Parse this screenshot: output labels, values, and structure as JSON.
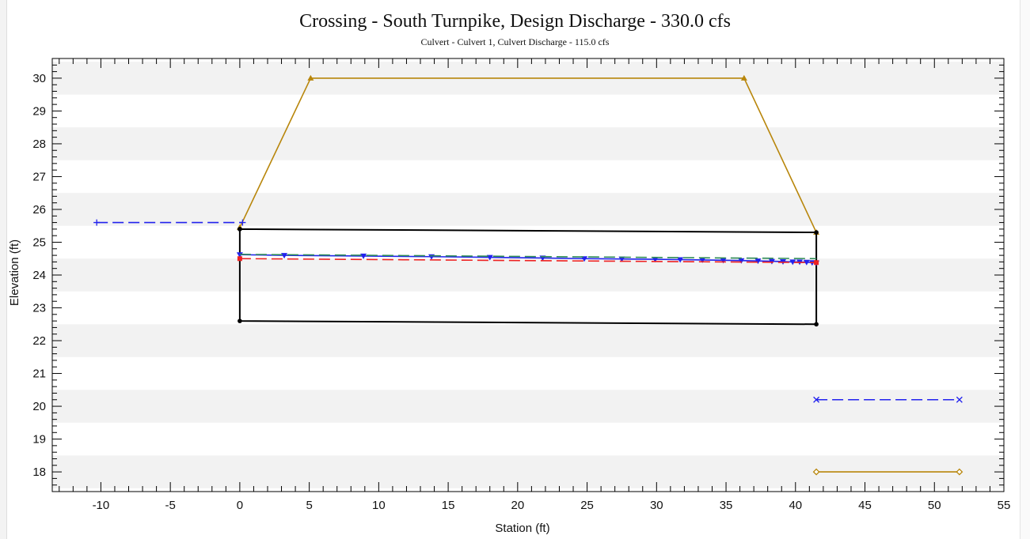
{
  "chart_data": {
    "type": "line",
    "title": "Crossing - South Turnpike, Design Discharge - 330.0 cfs",
    "subtitle": "Culvert - Culvert 1, Culvert Discharge - 115.0 cfs",
    "xlabel": "Station (ft)",
    "ylabel": "Elevation (ft)",
    "xlim": [
      -13.5,
      55
    ],
    "ylim": [
      17.4,
      30.6
    ],
    "xticks": [
      -10,
      -5,
      0,
      5,
      10,
      15,
      20,
      25,
      30,
      35,
      40,
      45,
      50,
      55
    ],
    "yticks": [
      18,
      19,
      20,
      21,
      22,
      23,
      24,
      25,
      26,
      27,
      28,
      29,
      30
    ],
    "grid": "alternating horizontal bands",
    "legend": "none",
    "series": [
      {
        "color": "#b8860b",
        "style": "solid",
        "marker": "triangle",
        "x": [
          0,
          5.1,
          36.3,
          41.5
        ],
        "y": [
          25.45,
          30.0,
          30.0,
          25.3
        ]
      },
      {
        "color": "#000000",
        "style": "solid",
        "marker": "dot",
        "x": [
          0,
          0,
          41.5,
          41.5,
          0
        ],
        "y": [
          25.4,
          22.6,
          22.5,
          25.3,
          25.4
        ]
      },
      {
        "color": "#2222ee",
        "style": "solid",
        "marker": "triangle-down",
        "x": [
          0,
          3.2,
          8.9,
          13.8,
          18,
          21.8,
          24.8,
          27.5,
          29.9,
          31.7,
          33.3,
          34.8,
          36.1,
          37.3,
          38.3,
          39.1,
          39.8,
          40.3,
          40.8,
          41.2,
          41.5
        ],
        "y": [
          24.62,
          24.6,
          24.58,
          24.56,
          24.54,
          24.52,
          24.5,
          24.49,
          24.48,
          24.47,
          24.46,
          24.45,
          24.44,
          24.43,
          24.42,
          24.41,
          24.4,
          24.4,
          24.39,
          24.38,
          24.37
        ]
      },
      {
        "color": "#2e8b57",
        "style": "dashed",
        "marker": "none",
        "x": [
          0,
          41.5
        ],
        "y": [
          24.63,
          24.5
        ]
      },
      {
        "color": "#ee2222",
        "style": "dashed",
        "marker": "square",
        "x": [
          0,
          41.5
        ],
        "y": [
          24.5,
          24.38
        ]
      },
      {
        "color": "#2222ee",
        "style": "dashed",
        "marker": "plus",
        "x": [
          -10.3,
          0.2
        ],
        "y": [
          25.6,
          25.6
        ]
      },
      {
        "color": "#2222ee",
        "style": "dashed",
        "marker": "x",
        "x": [
          41.5,
          51.8
        ],
        "y": [
          20.2,
          20.2
        ]
      },
      {
        "color": "#b8860b",
        "style": "solid",
        "marker": "diamond",
        "x": [
          41.5,
          51.8
        ],
        "y": [
          18.0,
          18.0
        ]
      }
    ]
  }
}
